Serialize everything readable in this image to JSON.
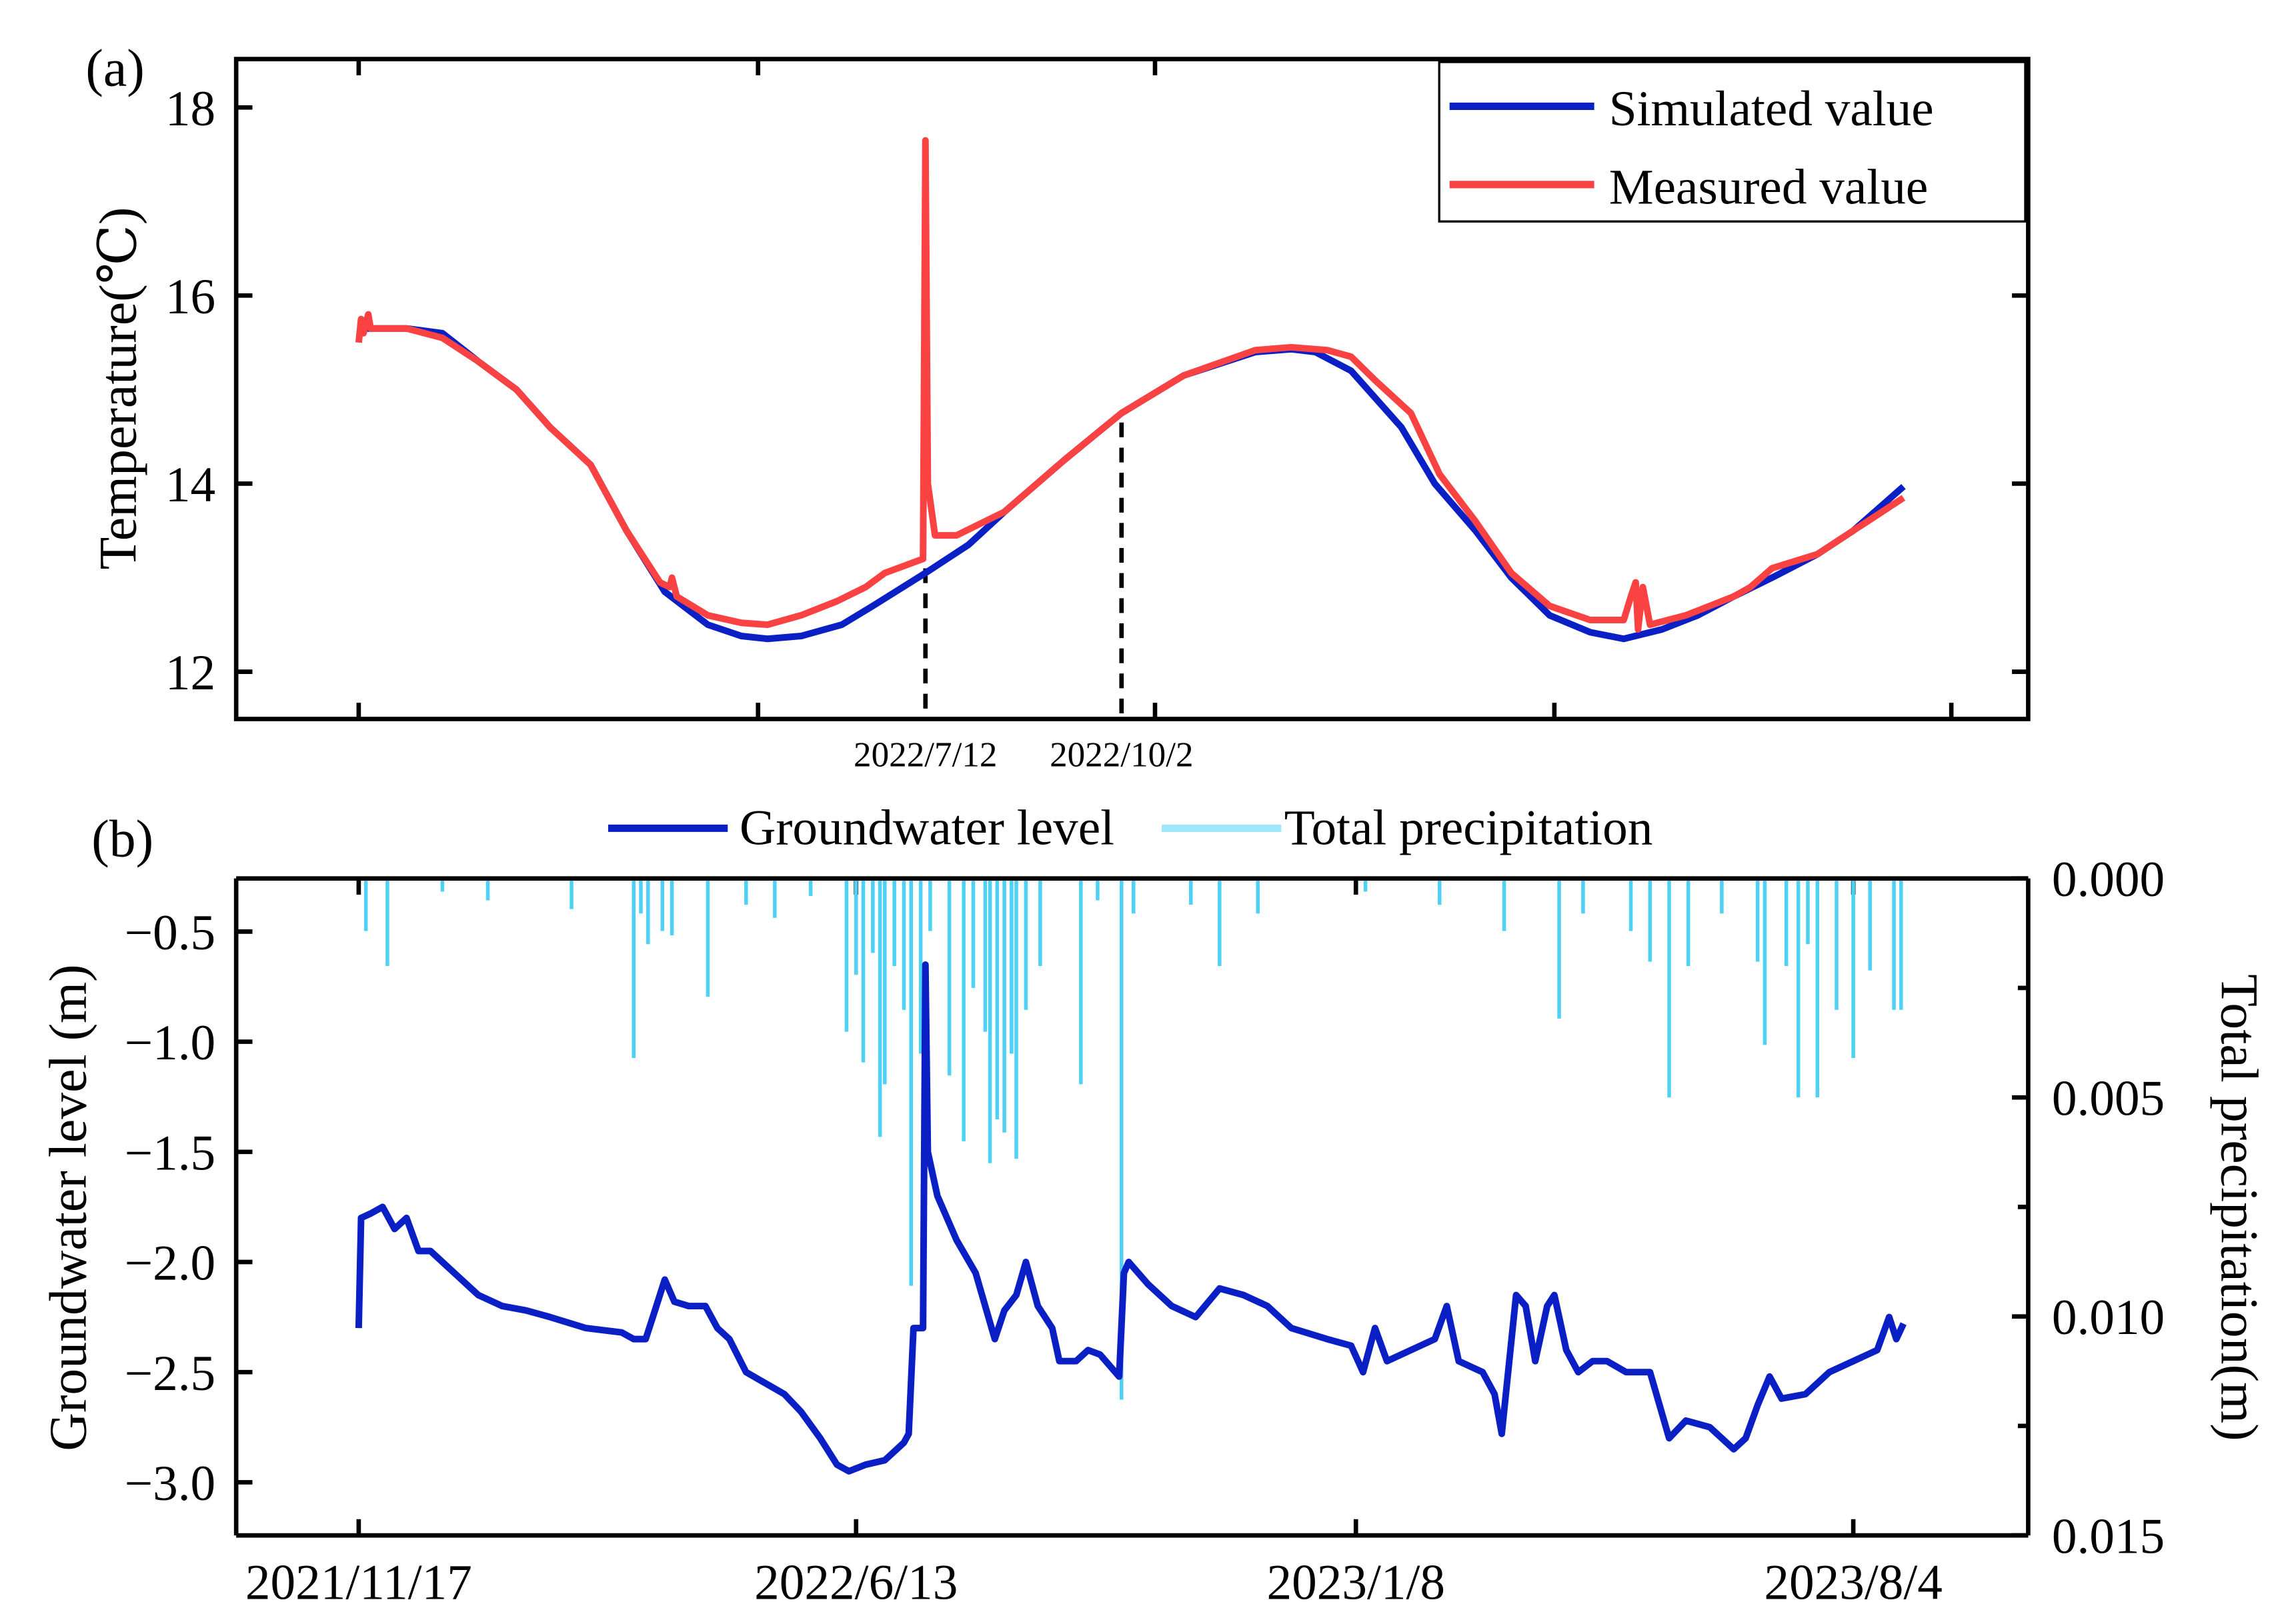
{
  "chart_data": [
    {
      "type": "line",
      "panel_label": "(a)",
      "ylabel": "Temperature(℃)",
      "ylim": [
        11.5,
        18.5
      ],
      "yticks": [
        12,
        14,
        16,
        18
      ],
      "ytick_labels": [
        "12",
        "14",
        "16",
        "18"
      ],
      "x_unit": "days since 2021/11/17",
      "xlim": [
        -51,
        699
      ],
      "xticks_unlabeled": [
        0,
        167,
        333,
        500,
        666
      ],
      "annotations": [
        {
          "day": 237,
          "label": "2022/7/12",
          "y_top": 13.1
        },
        {
          "day": 319,
          "label": "2022/10/2",
          "y_top": 14.65
        }
      ],
      "legend_position": "top-right",
      "series": [
        {
          "name": "Simulated value",
          "color": "#0a1fc4",
          "points": [
            [
              0,
              15.65
            ],
            [
              20,
              15.65
            ],
            [
              35,
              15.6
            ],
            [
              50,
              15.3
            ],
            [
              66,
              15.0
            ],
            [
              80,
              14.6
            ],
            [
              97,
              14.2
            ],
            [
              112,
              13.5
            ],
            [
              128,
              12.85
            ],
            [
              146,
              12.5
            ],
            [
              160,
              12.38
            ],
            [
              171,
              12.35
            ],
            [
              185,
              12.38
            ],
            [
              202,
              12.5
            ],
            [
              215,
              12.7
            ],
            [
              237,
              13.05
            ],
            [
              255,
              13.35
            ],
            [
              270,
              13.7
            ],
            [
              295,
              14.25
            ],
            [
              319,
              14.75
            ],
            [
              345,
              15.15
            ],
            [
              375,
              15.4
            ],
            [
              390,
              15.43
            ],
            [
              400,
              15.4
            ],
            [
              415,
              15.2
            ],
            [
              436,
              14.6
            ],
            [
              450,
              14.0
            ],
            [
              467,
              13.5
            ],
            [
              482,
              13.0
            ],
            [
              498,
              12.6
            ],
            [
              515,
              12.42
            ],
            [
              529,
              12.35
            ],
            [
              545,
              12.45
            ],
            [
              560,
              12.6
            ],
            [
              575,
              12.8
            ],
            [
              591,
              13.0
            ],
            [
              610,
              13.25
            ],
            [
              625,
              13.5
            ],
            [
              646,
              13.97
            ]
          ]
        },
        {
          "name": "Measured value",
          "color": "#fb4242",
          "points": [
            [
              0,
              15.5
            ],
            [
              1,
              15.75
            ],
            [
              2,
              15.6
            ],
            [
              4,
              15.8
            ],
            [
              5,
              15.65
            ],
            [
              20,
              15.65
            ],
            [
              35,
              15.55
            ],
            [
              50,
              15.3
            ],
            [
              66,
              15.0
            ],
            [
              80,
              14.6
            ],
            [
              97,
              14.2
            ],
            [
              112,
              13.5
            ],
            [
              126,
              12.95
            ],
            [
              130,
              12.9
            ],
            [
              131,
              13.0
            ],
            [
              133,
              12.8
            ],
            [
              146,
              12.6
            ],
            [
              160,
              12.52
            ],
            [
              171,
              12.5
            ],
            [
              185,
              12.6
            ],
            [
              200,
              12.75
            ],
            [
              212,
              12.9
            ],
            [
              220,
              13.05
            ],
            [
              236,
              13.2
            ],
            [
              237,
              17.65
            ],
            [
              238,
              14.0
            ],
            [
              241,
              13.45
            ],
            [
              250,
              13.45
            ],
            [
              270,
              13.7
            ],
            [
              295,
              14.25
            ],
            [
              319,
              14.75
            ],
            [
              345,
              15.15
            ],
            [
              375,
              15.42
            ],
            [
              390,
              15.45
            ],
            [
              405,
              15.42
            ],
            [
              415,
              15.35
            ],
            [
              425,
              15.1
            ],
            [
              440,
              14.75
            ],
            [
              452,
              14.1
            ],
            [
              467,
              13.6
            ],
            [
              482,
              13.05
            ],
            [
              498,
              12.7
            ],
            [
              515,
              12.55
            ],
            [
              529,
              12.55
            ],
            [
              532,
              12.8
            ],
            [
              534,
              12.95
            ],
            [
              535,
              12.45
            ],
            [
              537,
              12.9
            ],
            [
              540,
              12.5
            ],
            [
              555,
              12.6
            ],
            [
              575,
              12.8
            ],
            [
              582,
              12.9
            ],
            [
              591,
              13.1
            ],
            [
              610,
              13.25
            ],
            [
              625,
              13.5
            ],
            [
              646,
              13.85
            ]
          ]
        }
      ]
    },
    {
      "type": "line+bar",
      "panel_label": "(b)",
      "ylabel": "Groundwater level (m)",
      "ylim": [
        -3.24,
        -0.26
      ],
      "yticks": [
        -0.5,
        -1.0,
        -1.5,
        -2.0,
        -2.5,
        -3.0
      ],
      "ytick_labels": [
        "−0.5",
        "−1.0",
        "−1.5",
        "−2.0",
        "−2.5",
        "−3.0"
      ],
      "y2label": "Total precipitation(m)",
      "y2lim": [
        0,
        0.015
      ],
      "y2_inverted": true,
      "y2ticks": [
        0,
        0.005,
        0.01,
        0.015
      ],
      "y2tick_labels": [
        "0.000",
        "0.005",
        "0.010",
        "0.015"
      ],
      "y2minor": [
        0.0025,
        0.0075,
        0.0125
      ],
      "xlim": [
        -51,
        699
      ],
      "xticks": [
        0,
        208,
        417,
        625
      ],
      "xtick_labels": [
        "2021/11/17",
        "2022/6/13",
        "2023/1/8",
        "2023/8/4"
      ],
      "legend_position": "top",
      "series": [
        {
          "name": "Groundwater level",
          "color": "#0a1fc4",
          "points": [
            [
              0,
              -2.3
            ],
            [
              1,
              -1.8
            ],
            [
              5,
              -1.78
            ],
            [
              10,
              -1.75
            ],
            [
              15,
              -1.85
            ],
            [
              20,
              -1.8
            ],
            [
              25,
              -1.95
            ],
            [
              30,
              -1.95
            ],
            [
              40,
              -2.05
            ],
            [
              50,
              -2.15
            ],
            [
              60,
              -2.2
            ],
            [
              70,
              -2.22
            ],
            [
              80,
              -2.25
            ],
            [
              95,
              -2.3
            ],
            [
              110,
              -2.32
            ],
            [
              115,
              -2.35
            ],
            [
              120,
              -2.35
            ],
            [
              123,
              -2.25
            ],
            [
              128,
              -2.08
            ],
            [
              132,
              -2.18
            ],
            [
              138,
              -2.2
            ],
            [
              145,
              -2.2
            ],
            [
              150,
              -2.3
            ],
            [
              155,
              -2.35
            ],
            [
              162,
              -2.5
            ],
            [
              170,
              -2.55
            ],
            [
              178,
              -2.6
            ],
            [
              185,
              -2.68
            ],
            [
              193,
              -2.8
            ],
            [
              200,
              -2.92
            ],
            [
              205,
              -2.95
            ],
            [
              212,
              -2.92
            ],
            [
              220,
              -2.9
            ],
            [
              228,
              -2.82
            ],
            [
              230,
              -2.78
            ],
            [
              232,
              -2.3
            ],
            [
              236,
              -2.3
            ],
            [
              237,
              -0.65
            ],
            [
              238,
              -1.5
            ],
            [
              242,
              -1.7
            ],
            [
              250,
              -1.9
            ],
            [
              258,
              -2.05
            ],
            [
              262,
              -2.2
            ],
            [
              266,
              -2.35
            ],
            [
              270,
              -2.22
            ],
            [
              275,
              -2.15
            ],
            [
              279,
              -2.0
            ],
            [
              284,
              -2.2
            ],
            [
              290,
              -2.3
            ],
            [
              293,
              -2.45
            ],
            [
              300,
              -2.45
            ],
            [
              305,
              -2.4
            ],
            [
              310,
              -2.42
            ],
            [
              318,
              -2.52
            ],
            [
              320,
              -2.05
            ],
            [
              322,
              -2.0
            ],
            [
              330,
              -2.1
            ],
            [
              340,
              -2.2
            ],
            [
              350,
              -2.25
            ],
            [
              360,
              -2.12
            ],
            [
              370,
              -2.15
            ],
            [
              380,
              -2.2
            ],
            [
              390,
              -2.3
            ],
            [
              405,
              -2.35
            ],
            [
              415,
              -2.38
            ],
            [
              420,
              -2.5
            ],
            [
              425,
              -2.3
            ],
            [
              430,
              -2.45
            ],
            [
              440,
              -2.4
            ],
            [
              450,
              -2.35
            ],
            [
              455,
              -2.2
            ],
            [
              460,
              -2.45
            ],
            [
              470,
              -2.5
            ],
            [
              475,
              -2.6
            ],
            [
              478,
              -2.78
            ],
            [
              484,
              -2.15
            ],
            [
              488,
              -2.2
            ],
            [
              492,
              -2.45
            ],
            [
              497,
              -2.2
            ],
            [
              500,
              -2.15
            ],
            [
              505,
              -2.4
            ],
            [
              510,
              -2.5
            ],
            [
              516,
              -2.45
            ],
            [
              522,
              -2.45
            ],
            [
              530,
              -2.5
            ],
            [
              540,
              -2.5
            ],
            [
              548,
              -2.8
            ],
            [
              555,
              -2.72
            ],
            [
              565,
              -2.75
            ],
            [
              575,
              -2.85
            ],
            [
              580,
              -2.8
            ],
            [
              585,
              -2.65
            ],
            [
              590,
              -2.52
            ],
            [
              595,
              -2.62
            ],
            [
              605,
              -2.6
            ],
            [
              615,
              -2.5
            ],
            [
              625,
              -2.45
            ],
            [
              635,
              -2.4
            ],
            [
              640,
              -2.25
            ],
            [
              643,
              -2.35
            ],
            [
              646,
              -2.28
            ]
          ]
        },
        {
          "name": "Total precipitation",
          "color": "#4fd1f5",
          "bars": [
            [
              3,
              0.0012
            ],
            [
              12,
              0.002
            ],
            [
              35,
              0.0003
            ],
            [
              54,
              0.0005
            ],
            [
              89,
              0.0007
            ],
            [
              115,
              0.0041
            ],
            [
              118,
              0.0008
            ],
            [
              121,
              0.0015
            ],
            [
              127,
              0.0012
            ],
            [
              131,
              0.0013
            ],
            [
              146,
              0.0027
            ],
            [
              162,
              0.0006
            ],
            [
              174,
              0.0009
            ],
            [
              189,
              0.0004
            ],
            [
              204,
              0.0035
            ],
            [
              208,
              0.0022
            ],
            [
              211,
              0.0042
            ],
            [
              215,
              0.0017
            ],
            [
              218,
              0.0059
            ],
            [
              220,
              0.0047
            ],
            [
              224,
              0.002
            ],
            [
              228,
              0.003
            ],
            [
              231,
              0.0093
            ],
            [
              235,
              0.004
            ],
            [
              239,
              0.0012
            ],
            [
              247,
              0.0045
            ],
            [
              253,
              0.006
            ],
            [
              257,
              0.0025
            ],
            [
              262,
              0.0035
            ],
            [
              264,
              0.0065
            ],
            [
              267,
              0.0055
            ],
            [
              270,
              0.0058
            ],
            [
              273,
              0.004
            ],
            [
              275,
              0.0064
            ],
            [
              279,
              0.003
            ],
            [
              285,
              0.002
            ],
            [
              302,
              0.0047
            ],
            [
              309,
              0.0005
            ],
            [
              319,
              0.0119
            ],
            [
              324,
              0.0008
            ],
            [
              348,
              0.0006
            ],
            [
              360,
              0.002
            ],
            [
              376,
              0.0008
            ],
            [
              421,
              0.0003
            ],
            [
              452,
              0.0006
            ],
            [
              479,
              0.0012
            ],
            [
              502,
              0.0032
            ],
            [
              512,
              0.0008
            ],
            [
              532,
              0.0012
            ],
            [
              540,
              0.0019
            ],
            [
              548,
              0.005
            ],
            [
              556,
              0.002
            ],
            [
              570,
              0.0008
            ],
            [
              585,
              0.0019
            ],
            [
              588,
              0.0038
            ],
            [
              597,
              0.002
            ],
            [
              602,
              0.005
            ],
            [
              606,
              0.0015
            ],
            [
              610,
              0.005
            ],
            [
              618,
              0.003
            ],
            [
              625,
              0.0041
            ],
            [
              632,
              0.0021
            ],
            [
              642,
              0.003
            ],
            [
              645,
              0.003
            ]
          ]
        }
      ]
    }
  ]
}
